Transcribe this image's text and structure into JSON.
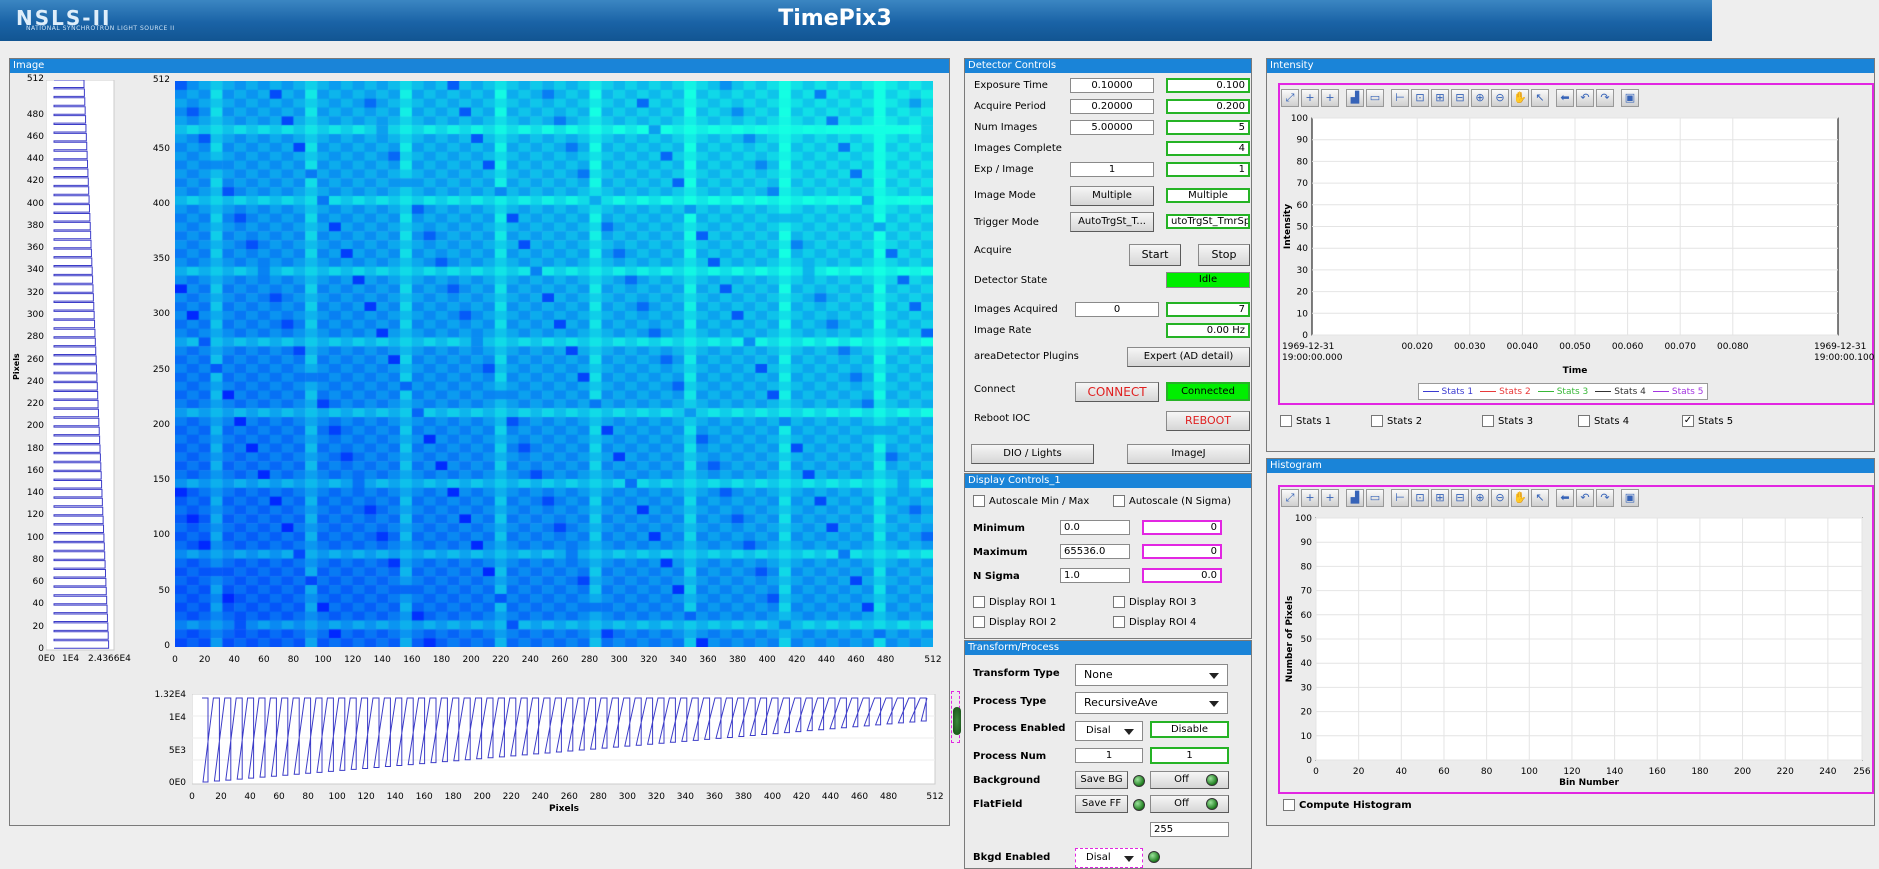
{
  "banner": {
    "logo": "NSLS-II",
    "logo_sub": "NATIONAL SYNCHROTRON LIGHT SOURCE II",
    "title": "TimePix3"
  },
  "image_panel": {
    "title": "Image",
    "left_ylabel": "Pixels",
    "left_yticks": [
      "512",
      "480",
      "460",
      "440",
      "420",
      "400",
      "380",
      "360",
      "340",
      "320",
      "300",
      "280",
      "260",
      "240",
      "220",
      "200",
      "180",
      "160",
      "140",
      "120",
      "100",
      "80",
      "60",
      "40",
      "20",
      "0"
    ],
    "left_xticks": [
      "0E0",
      "1E4",
      "2.4366E4"
    ],
    "main_yticks": [
      "512",
      "450",
      "400",
      "350",
      "300",
      "250",
      "200",
      "150",
      "100",
      "50",
      "0"
    ],
    "main_xticks": [
      "0",
      "20",
      "40",
      "60",
      "80",
      "100",
      "120",
      "140",
      "160",
      "180",
      "200",
      "220",
      "240",
      "260",
      "280",
      "300",
      "320",
      "340",
      "360",
      "380",
      "400",
      "420",
      "440",
      "460",
      "480",
      "512"
    ],
    "bottom_yticks": [
      "1.32E4",
      "1E4",
      "5E3",
      "0E0"
    ],
    "bottom_xticks": [
      "0",
      "20",
      "40",
      "60",
      "80",
      "100",
      "120",
      "140",
      "160",
      "180",
      "200",
      "220",
      "240",
      "260",
      "280",
      "300",
      "320",
      "340",
      "360",
      "380",
      "400",
      "420",
      "440",
      "460",
      "480",
      "512"
    ],
    "bottom_xlabel": "Pixels"
  },
  "detector": {
    "title": "Detector Controls",
    "exposure_time": {
      "label": "Exposure Time",
      "value": "0.10000",
      "readback": "0.100"
    },
    "acquire_period": {
      "label": "Acquire Period",
      "value": "0.20000",
      "readback": "0.200"
    },
    "num_images": {
      "label": "Num Images",
      "value": "5.00000",
      "readback": "5"
    },
    "images_complete": {
      "label": "Images Complete",
      "readback": "4"
    },
    "exp_image": {
      "label": "Exp / Image",
      "value": "1",
      "readback": "1"
    },
    "image_mode": {
      "label": "Image Mode",
      "value": "Multiple",
      "readback": "Multiple"
    },
    "trigger_mode": {
      "label": "Trigger Mode",
      "value": "AutoTrgSt_T...",
      "readback": "utoTrgSt_TmrSp"
    },
    "acquire": {
      "label": "Acquire",
      "start": "Start",
      "stop": "Stop"
    },
    "detector_state": {
      "label": "Detector State",
      "value": "Idle",
      "color": "#00ee00"
    },
    "images_acquired": {
      "label": "Images Acquired",
      "value": "0",
      "readback": "7"
    },
    "image_rate": {
      "label": "Image Rate",
      "readback": "0.00 Hz"
    },
    "plugins": {
      "label": "areaDetector Plugins",
      "button": "Expert (AD detail)"
    },
    "connect": {
      "label": "Connect",
      "button": "CONNECT",
      "status": "Connected"
    },
    "reboot": {
      "label": "Reboot IOC",
      "button": "REBOOT"
    },
    "dio_button": "DIO / Lights",
    "imagej_button": "ImageJ"
  },
  "display": {
    "title": "Display Controls_1",
    "autoscale_minmax": "Autoscale Min / Max",
    "autoscale_nsigma": "Autoscale (N Sigma)",
    "minimum": {
      "label": "Minimum",
      "value": "0.0",
      "readback": "0"
    },
    "maximum": {
      "label": "Maximum",
      "value": "65536.0",
      "readback": "0"
    },
    "nsigma": {
      "label": "N Sigma",
      "value": "1.0",
      "readback": "0.0"
    },
    "roi1": "Display ROI 1",
    "roi2": "Display ROI 2",
    "roi3": "Display ROI 3",
    "roi4": "Display ROI 4"
  },
  "transform": {
    "title": "Transform/Process",
    "transform_type": {
      "label": "Transform Type",
      "value": "None"
    },
    "process_type": {
      "label": "Process Type",
      "value": "RecursiveAve"
    },
    "process_enabled": {
      "label": "Process Enabled",
      "value": "Disal",
      "readback": "Disable"
    },
    "process_num": {
      "label": "Process Num",
      "value": "1",
      "readback": "1"
    },
    "background": {
      "label": "Background",
      "button": "Save BG",
      "toggle": "Off"
    },
    "flatfield": {
      "label": "FlatField",
      "button": "Save FF",
      "toggle": "Off",
      "value": "255"
    },
    "bkgd_enabled": {
      "label": "Bkgd Enabled",
      "value": "Disal"
    }
  },
  "intensity": {
    "title": "Intensity",
    "ylabel": "Intensity",
    "xlabel": "Time",
    "yticks": [
      "100",
      "90",
      "80",
      "70",
      "60",
      "50",
      "40",
      "30",
      "20",
      "10",
      "0"
    ],
    "x_left_date": "1969-12-31",
    "x_left_time": "19:00:00.000",
    "x_right_date": "1969-12-31",
    "x_right_time": "19:00:00.100",
    "xticks": [
      "00.020",
      "00.030",
      "00.040",
      "00.050",
      "00.060",
      "00.070",
      "00.080"
    ],
    "legend": [
      {
        "name": "Stats 1",
        "color": "#3b3bd1"
      },
      {
        "name": "Stats 2",
        "color": "#e83a3a"
      },
      {
        "name": "Stats 3",
        "color": "#38b838"
      },
      {
        "name": "Stats 4",
        "color": "#333333"
      },
      {
        "name": "Stats 5",
        "color": "#a335e0"
      }
    ],
    "checkboxes": [
      {
        "label": "Stats 1",
        "checked": false
      },
      {
        "label": "Stats 2",
        "checked": false
      },
      {
        "label": "Stats 3",
        "checked": false
      },
      {
        "label": "Stats 4",
        "checked": false
      },
      {
        "label": "Stats 5",
        "checked": true
      }
    ]
  },
  "histogram": {
    "title": "Histogram",
    "ylabel": "Number of Pixels",
    "xlabel": "Bin Number",
    "yticks": [
      "100",
      "90",
      "80",
      "70",
      "60",
      "50",
      "40",
      "30",
      "20",
      "10",
      "0"
    ],
    "xticks": [
      "0",
      "20",
      "40",
      "60",
      "80",
      "100",
      "120",
      "140",
      "160",
      "180",
      "200",
      "220",
      "240",
      "256"
    ],
    "compute": "Compute Histogram"
  }
}
